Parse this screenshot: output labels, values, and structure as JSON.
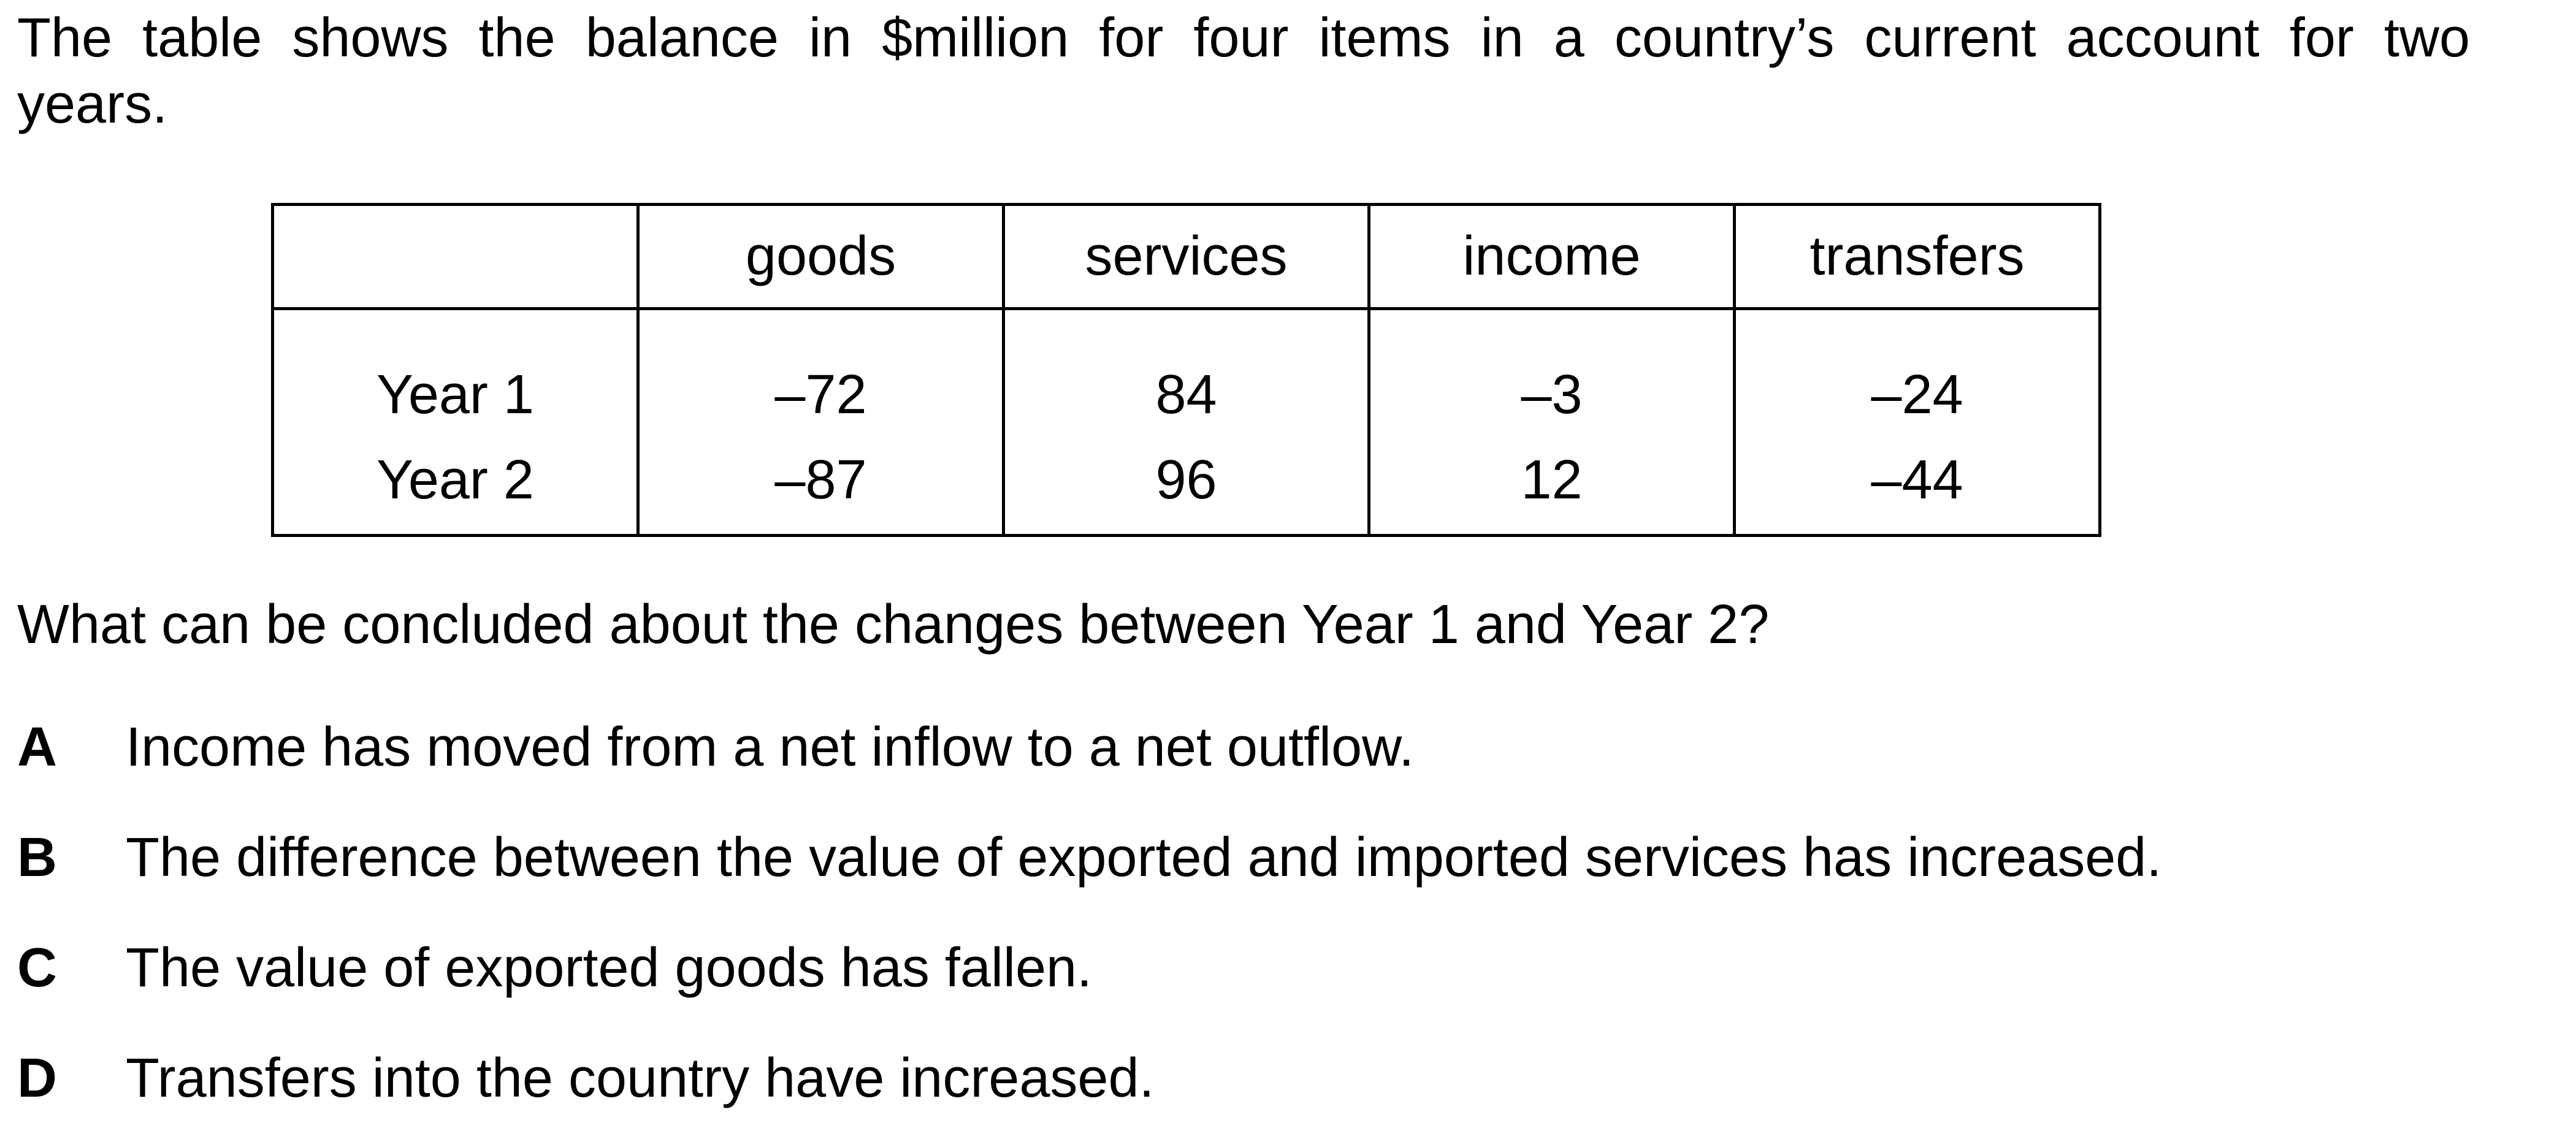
{
  "intro": {
    "line1": "The table shows the balance in $million for four items in a country’s current account for two",
    "line2": "years."
  },
  "table": {
    "headers": [
      "",
      "goods",
      "services",
      "income",
      "transfers"
    ],
    "rows": [
      {
        "label": "Year 1",
        "values": [
          "–72",
          "84",
          "–3",
          "–24"
        ]
      },
      {
        "label": "Year 2",
        "values": [
          "–87",
          "96",
          "12",
          "–44"
        ]
      }
    ]
  },
  "question": "What can be concluded about the changes between Year 1 and Year 2?",
  "options": [
    {
      "letter": "A",
      "text": "Income has moved from a net inflow to a net outflow."
    },
    {
      "letter": "B",
      "text": "The difference between the value of exported and imported services has increased."
    },
    {
      "letter": "C",
      "text": "The value of exported goods has fallen."
    },
    {
      "letter": "D",
      "text": "Transfers into the country have increased."
    }
  ]
}
